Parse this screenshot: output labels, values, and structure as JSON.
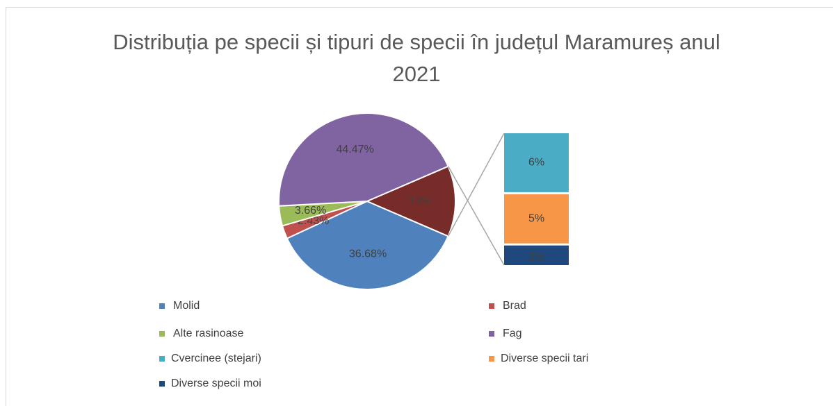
{
  "chart_data": {
    "type": "barofpie",
    "title": "Distribuția pe specii și tipuri de specii în județul Maramureș anul 2021",
    "categories": [
      "Molid",
      "Brad",
      "Alte rasinoase",
      "Fag",
      null
    ],
    "values": [
      36.68,
      2.43,
      3.66,
      44.47,
      13
    ],
    "value_labels": [
      "36.68%",
      "2.43%",
      "3.66%",
      "44.47%",
      "13%"
    ],
    "colors": [
      "#4f81bd",
      "#c0504d",
      "#9bbb59",
      "#8064a2",
      "#772c2a"
    ],
    "bar_categories": [
      "Cvercinee (stejari)",
      "Diverse specii tari",
      "Diverse specii moi"
    ],
    "bar_values": [
      6,
      5,
      2
    ],
    "bar_value_labels": [
      "6%",
      "5%",
      "2%"
    ],
    "bar_colors": [
      "#4bacc6",
      "#f79646",
      "#1f497d"
    ],
    "legend": "bottom"
  }
}
